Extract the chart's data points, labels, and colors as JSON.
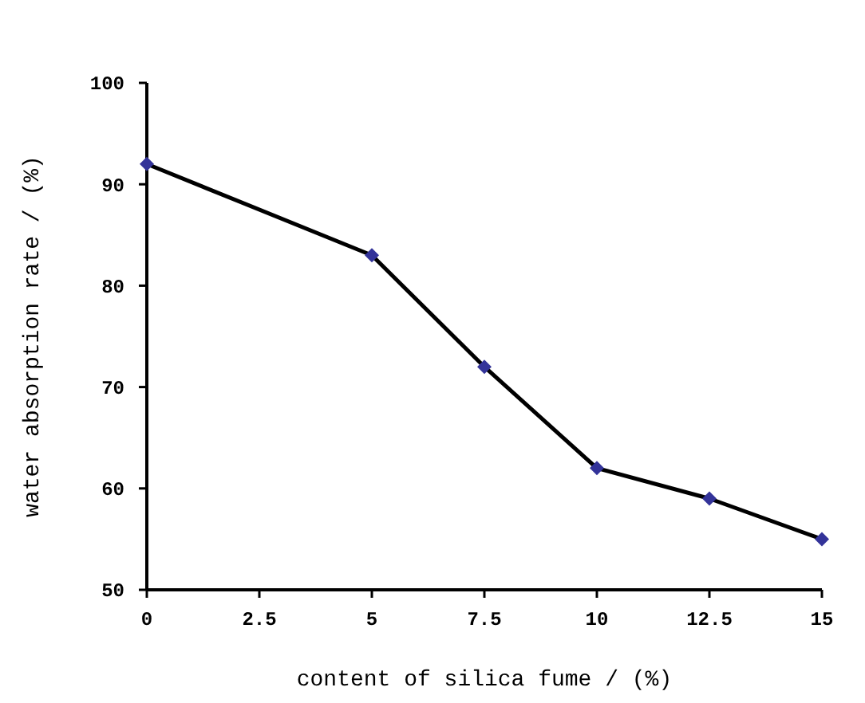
{
  "chart_data": {
    "type": "line",
    "xlabel": "content of silica fume / (%)",
    "ylabel": "water absorption rate / (%)",
    "x": [
      0,
      5,
      7.5,
      10,
      12.5,
      15
    ],
    "series": [
      {
        "color": "#000000",
        "colors": [
          "#333399",
          "#333399",
          "#333399",
          "#333399",
          "#333399",
          "#333399"
        ],
        "values": [
          92,
          83,
          72,
          62,
          59,
          55
        ]
      }
    ],
    "xlim": [
      0,
      15
    ],
    "xticks": [
      0,
      2.5,
      5,
      7.5,
      10,
      12.5,
      15
    ],
    "ylim": [
      50,
      100
    ],
    "yticks": [
      50,
      60,
      70,
      80,
      90,
      100
    ],
    "marker": "diamond",
    "line_style": "solid"
  }
}
